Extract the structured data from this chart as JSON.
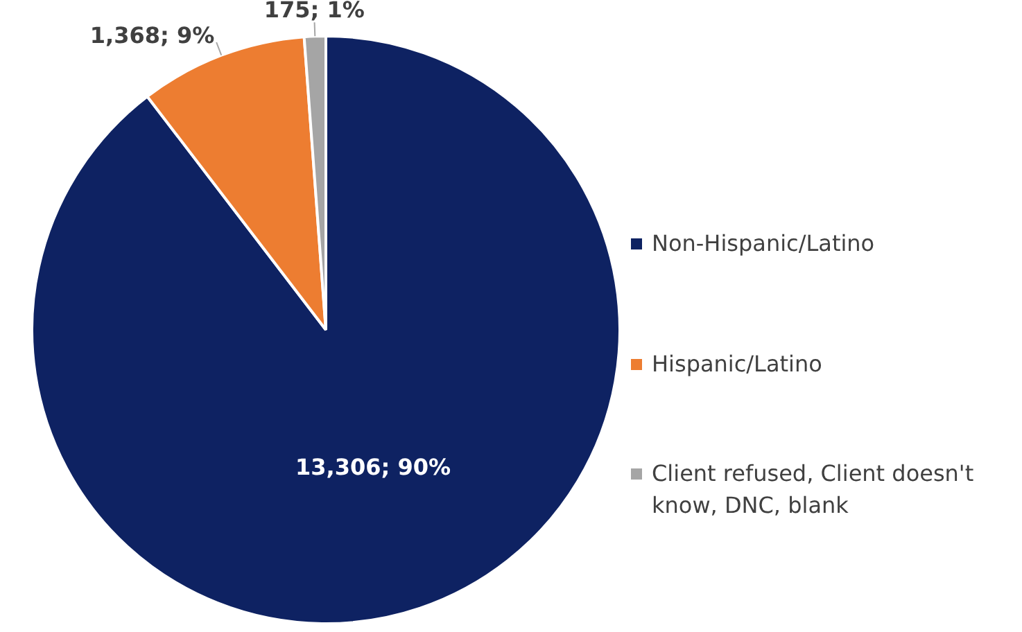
{
  "chart_data": {
    "type": "pie",
    "categories": [
      "Non-Hispanic/Latino",
      "Hispanic/Latino",
      "Client refused, Client doesn't know, DNC, blank"
    ],
    "values": [
      13306,
      1368,
      175
    ],
    "colors": [
      "#0e2262",
      "#ed7d31",
      "#a5a5a5"
    ],
    "value_labels": [
      "13,306; 90%",
      "1,368; 9%",
      "175; 1%"
    ],
    "legend": "right"
  }
}
